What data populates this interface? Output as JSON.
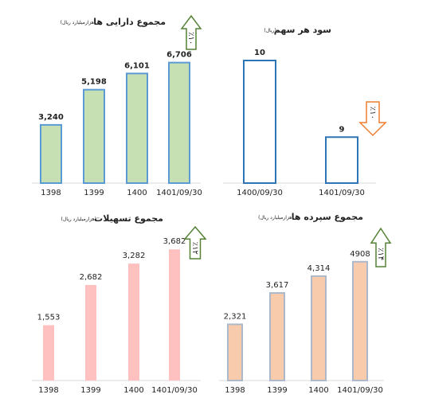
{
  "chart_data": [
    {
      "type": "bar",
      "title": "مجموع دارایی ها",
      "subtitle": "(هزارمیلیارد ریال)",
      "categories": [
        "1398",
        "1399",
        "1400",
        "1401/09/30"
      ],
      "values": [
        3240,
        5198,
        6101,
        6706
      ],
      "value_labels": [
        "3,240",
        "5,198",
        "6,101",
        "6,706"
      ],
      "color": "#c6e0b4",
      "edge_color": "#5b9bd5",
      "label_bold": true,
      "ylim": [
        0,
        7000
      ],
      "annotation": {
        "text": "٪۱۰",
        "direction": "up",
        "color": "#548235"
      }
    },
    {
      "type": "bar",
      "title": "سود هر سهم",
      "subtitle": "(ریال)",
      "categories": [
        "1400/09/30",
        "1401/09/30"
      ],
      "values": [
        10,
        9
      ],
      "color": "#ffffff",
      "edge_color": "#2e75b6",
      "label_bold": true,
      "ylim": [
        8.4,
        10
      ],
      "annotation": {
        "text": "٪۱۰",
        "direction": "down",
        "color": "#ed7d31"
      }
    },
    {
      "type": "bar",
      "title": "مجموع تسهیلات",
      "subtitle": "(هزارمیلیارد ریال)",
      "categories": [
        "1398",
        "1399",
        "1400",
        "1401/09/30"
      ],
      "values": [
        1553,
        2682,
        3282,
        3682
      ],
      "value_labels": [
        "1,553",
        "2,682",
        "3,282",
        "3,682"
      ],
      "color": "#ffc0c0",
      "label_bold": false,
      "ylim": [
        0,
        4000
      ],
      "annotation": {
        "text": "٪۱۲",
        "direction": "up",
        "color": "#548235"
      }
    },
    {
      "type": "bar",
      "title": "مجموع سپرده ها",
      "subtitle": "(هزارمیلیارد ریال)",
      "categories": [
        "1398",
        "1399",
        "1400",
        "1401/09/30"
      ],
      "values": [
        2321,
        3617,
        4314,
        4908
      ],
      "value_labels": [
        "2,321",
        "3,617",
        "4,314",
        "4908"
      ],
      "color": "#f8cbad",
      "edge_color": "#adb9ca",
      "label_bold": false,
      "ylim": [
        0,
        5000
      ],
      "annotation": {
        "text": "٪۱۴",
        "direction": "up",
        "color": "#548235"
      }
    }
  ]
}
